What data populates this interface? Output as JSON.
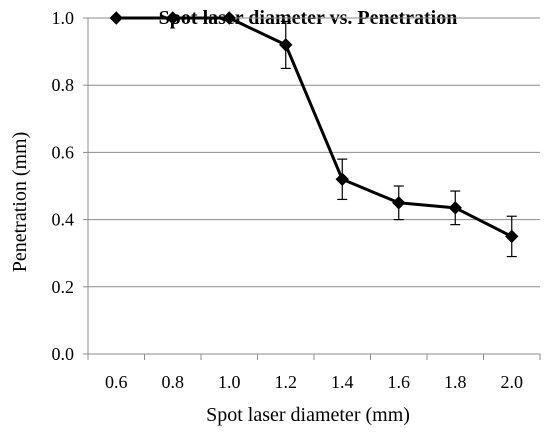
{
  "chart_data": {
    "type": "line",
    "title": "Spot laser diameter vs. Penetration",
    "xlabel": "Spot laser diameter (mm)",
    "ylabel": "Penetration (mm)",
    "categories": [
      "0.6",
      "0.8",
      "1.0",
      "1.2",
      "1.4",
      "1.6",
      "1.8",
      "2.0"
    ],
    "ylim": [
      0,
      1.0
    ],
    "yticks": [
      "0.0",
      "0.2",
      "0.4",
      "0.6",
      "0.8",
      "1.0"
    ],
    "grid": "horizontal",
    "legend": "none",
    "series": [
      {
        "values": [
          1.0,
          1.0,
          1.0,
          0.92,
          0.52,
          0.45,
          0.435,
          0.35
        ],
        "error": [
          0,
          0,
          0,
          0.07,
          0.06,
          0.05,
          0.05,
          0.06
        ],
        "color": "#000000",
        "marker": "diamond"
      }
    ]
  }
}
